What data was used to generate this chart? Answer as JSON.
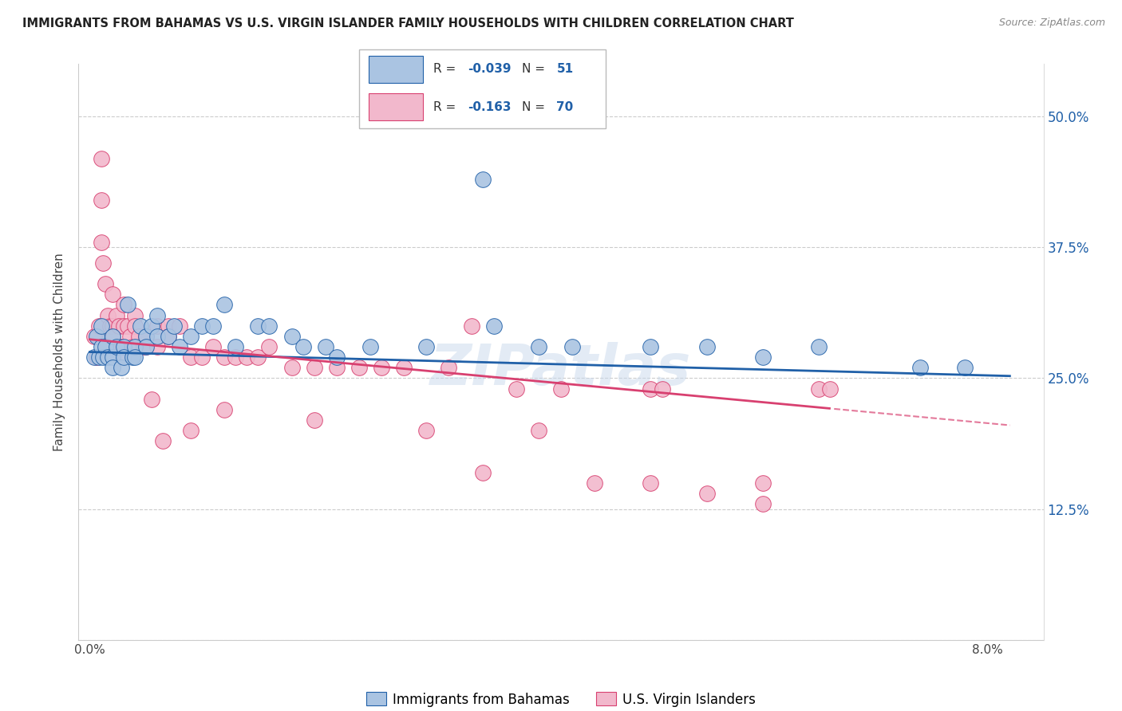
{
  "title": "IMMIGRANTS FROM BAHAMAS VS U.S. VIRGIN ISLANDER FAMILY HOUSEHOLDS WITH CHILDREN CORRELATION CHART",
  "source": "Source: ZipAtlas.com",
  "ylabel": "Family Households with Children",
  "y_ticks": [
    0.0,
    0.125,
    0.25,
    0.375,
    0.5
  ],
  "y_ticklabels_right": [
    "",
    "12.5%",
    "25.0%",
    "37.5%",
    "50.0%"
  ],
  "ylim": [
    0.0,
    0.55
  ],
  "xlim": [
    -0.001,
    0.085
  ],
  "legend_label1": "Immigrants from Bahamas",
  "legend_label2": "U.S. Virgin Islanders",
  "color_blue": "#aac4e2",
  "color_pink": "#f2b8cc",
  "line_color_blue": "#2060a8",
  "line_color_pink": "#d84070",
  "text_color_blue": "#2060a8",
  "watermark": "ZIPatlas",
  "blue_x": [
    0.0004,
    0.0006,
    0.0008,
    0.001,
    0.001,
    0.0012,
    0.0014,
    0.0016,
    0.002,
    0.002,
    0.002,
    0.0024,
    0.0028,
    0.003,
    0.003,
    0.0034,
    0.0038,
    0.004,
    0.004,
    0.0045,
    0.005,
    0.005,
    0.0055,
    0.006,
    0.006,
    0.007,
    0.0075,
    0.008,
    0.009,
    0.01,
    0.011,
    0.012,
    0.013,
    0.015,
    0.016,
    0.018,
    0.019,
    0.021,
    0.022,
    0.025,
    0.03,
    0.035,
    0.036,
    0.04,
    0.043,
    0.05,
    0.055,
    0.06,
    0.065,
    0.074,
    0.078
  ],
  "blue_y": [
    0.27,
    0.29,
    0.27,
    0.3,
    0.28,
    0.27,
    0.28,
    0.27,
    0.29,
    0.27,
    0.26,
    0.28,
    0.26,
    0.28,
    0.27,
    0.32,
    0.27,
    0.28,
    0.27,
    0.3,
    0.29,
    0.28,
    0.3,
    0.31,
    0.29,
    0.29,
    0.3,
    0.28,
    0.29,
    0.3,
    0.3,
    0.32,
    0.28,
    0.3,
    0.3,
    0.29,
    0.28,
    0.28,
    0.27,
    0.28,
    0.28,
    0.44,
    0.3,
    0.28,
    0.28,
    0.28,
    0.28,
    0.27,
    0.28,
    0.26,
    0.26
  ],
  "pink_x": [
    0.0004,
    0.0006,
    0.0008,
    0.001,
    0.001,
    0.001,
    0.0012,
    0.0014,
    0.0016,
    0.0018,
    0.002,
    0.002,
    0.002,
    0.0024,
    0.0026,
    0.0028,
    0.003,
    0.003,
    0.003,
    0.0034,
    0.0036,
    0.0038,
    0.004,
    0.004,
    0.0044,
    0.0048,
    0.005,
    0.005,
    0.006,
    0.006,
    0.007,
    0.007,
    0.008,
    0.009,
    0.01,
    0.011,
    0.012,
    0.013,
    0.014,
    0.015,
    0.016,
    0.018,
    0.02,
    0.022,
    0.024,
    0.026,
    0.028,
    0.032,
    0.034,
    0.038,
    0.04,
    0.042,
    0.05,
    0.051,
    0.06,
    0.065,
    0.066,
    0.0015,
    0.0025,
    0.0055,
    0.0065,
    0.009,
    0.012,
    0.02,
    0.03,
    0.035,
    0.045,
    0.05,
    0.055,
    0.06
  ],
  "pink_y": [
    0.29,
    0.27,
    0.3,
    0.46,
    0.42,
    0.38,
    0.36,
    0.34,
    0.31,
    0.3,
    0.33,
    0.3,
    0.29,
    0.31,
    0.3,
    0.28,
    0.32,
    0.3,
    0.28,
    0.3,
    0.29,
    0.28,
    0.31,
    0.3,
    0.29,
    0.28,
    0.29,
    0.28,
    0.3,
    0.28,
    0.3,
    0.29,
    0.3,
    0.27,
    0.27,
    0.28,
    0.27,
    0.27,
    0.27,
    0.27,
    0.28,
    0.26,
    0.26,
    0.26,
    0.26,
    0.26,
    0.26,
    0.26,
    0.3,
    0.24,
    0.2,
    0.24,
    0.24,
    0.24,
    0.13,
    0.24,
    0.24,
    0.28,
    0.27,
    0.23,
    0.19,
    0.2,
    0.22,
    0.21,
    0.2,
    0.16,
    0.15,
    0.15,
    0.14,
    0.15
  ]
}
